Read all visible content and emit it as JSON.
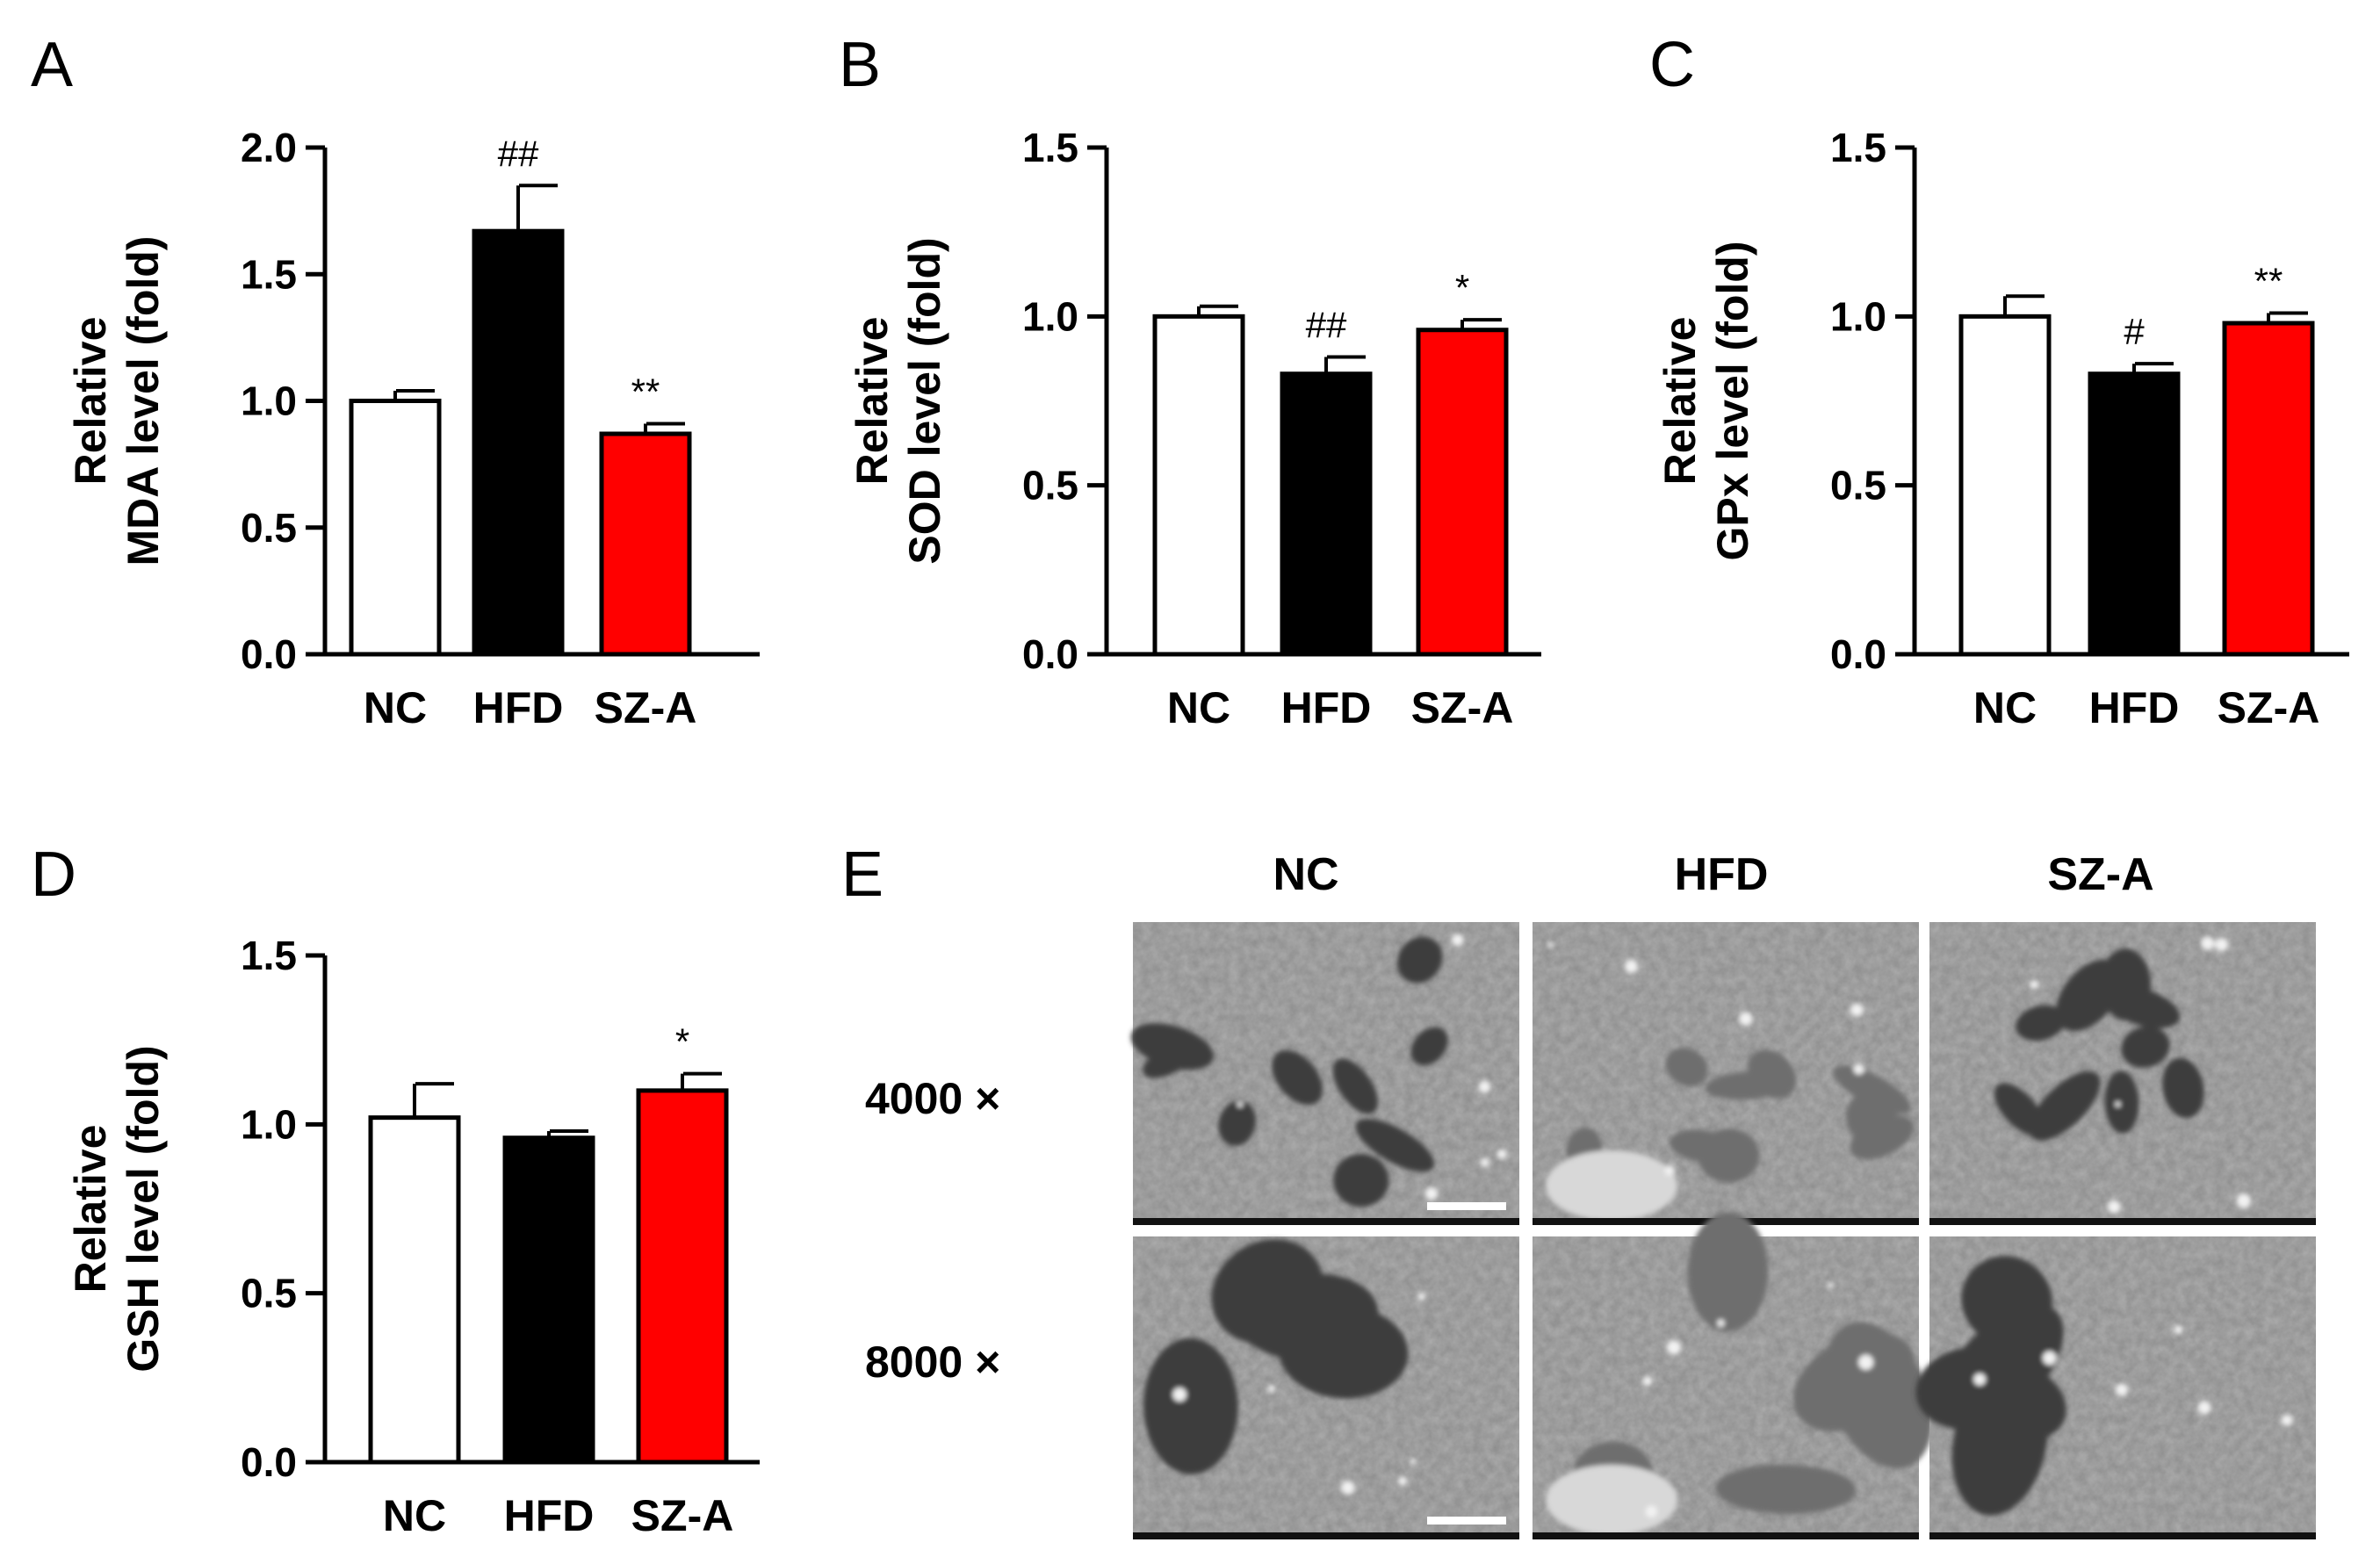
{
  "chart_data": [
    {
      "panel": "A",
      "type": "bar",
      "categories": [
        "NC",
        "HFD",
        "SZ-A"
      ],
      "values": [
        1.0,
        1.67,
        0.87
      ],
      "errors": [
        0.04,
        0.18,
        0.04
      ],
      "significance": [
        "",
        "##",
        "**"
      ],
      "colors": [
        "#ffffff",
        "#000000",
        "#ff0000"
      ],
      "ylabel": [
        "Relative",
        "MDA level (fold)"
      ],
      "ylim": [
        0,
        2.0
      ],
      "yticks": [
        0.0,
        0.5,
        1.0,
        1.5,
        2.0
      ],
      "ytick_labels": [
        "0.0",
        "0.5",
        "1.0",
        "1.5",
        "2.0"
      ]
    },
    {
      "panel": "B",
      "type": "bar",
      "categories": [
        "NC",
        "HFD",
        "SZ-A"
      ],
      "values": [
        1.0,
        0.83,
        0.96
      ],
      "errors": [
        0.03,
        0.05,
        0.03
      ],
      "significance": [
        "",
        "##",
        "*"
      ],
      "colors": [
        "#ffffff",
        "#000000",
        "#ff0000"
      ],
      "ylabel": [
        "Relative",
        "SOD level (fold)"
      ],
      "ylim": [
        0,
        1.5
      ],
      "yticks": [
        0.0,
        0.5,
        1.0,
        1.5
      ],
      "ytick_labels": [
        "0.0",
        "0.5",
        "1.0",
        "1.5"
      ]
    },
    {
      "panel": "C",
      "type": "bar",
      "categories": [
        "NC",
        "HFD",
        "SZ-A"
      ],
      "values": [
        1.0,
        0.83,
        0.98
      ],
      "errors": [
        0.06,
        0.03,
        0.03
      ],
      "significance": [
        "",
        "#",
        "**"
      ],
      "colors": [
        "#ffffff",
        "#000000",
        "#ff0000"
      ],
      "ylabel": [
        "Relative",
        "GPx level (fold)"
      ],
      "ylim": [
        0,
        1.5
      ],
      "yticks": [
        0.0,
        0.5,
        1.0,
        1.5
      ],
      "ytick_labels": [
        "0.0",
        "0.5",
        "1.0",
        "1.5"
      ]
    },
    {
      "panel": "D",
      "type": "bar",
      "categories": [
        "NC",
        "HFD",
        "SZ-A"
      ],
      "values": [
        1.02,
        0.96,
        1.1
      ],
      "errors": [
        0.1,
        0.02,
        0.05
      ],
      "significance": [
        "",
        "",
        "*"
      ],
      "colors": [
        "#ffffff",
        "#000000",
        "#ff0000"
      ],
      "ylabel": [
        "Relative",
        "GSH level (fold)"
      ],
      "ylim": [
        0,
        1.5
      ],
      "yticks": [
        0.0,
        0.5,
        1.0,
        1.5
      ],
      "ytick_labels": [
        "0.0",
        "0.5",
        "1.0",
        "1.5"
      ]
    }
  ],
  "micrographs": {
    "panel": "E",
    "columns": [
      "NC",
      "HFD",
      "SZ-A"
    ],
    "rows": [
      "4000 ×",
      "8000 ×"
    ]
  }
}
